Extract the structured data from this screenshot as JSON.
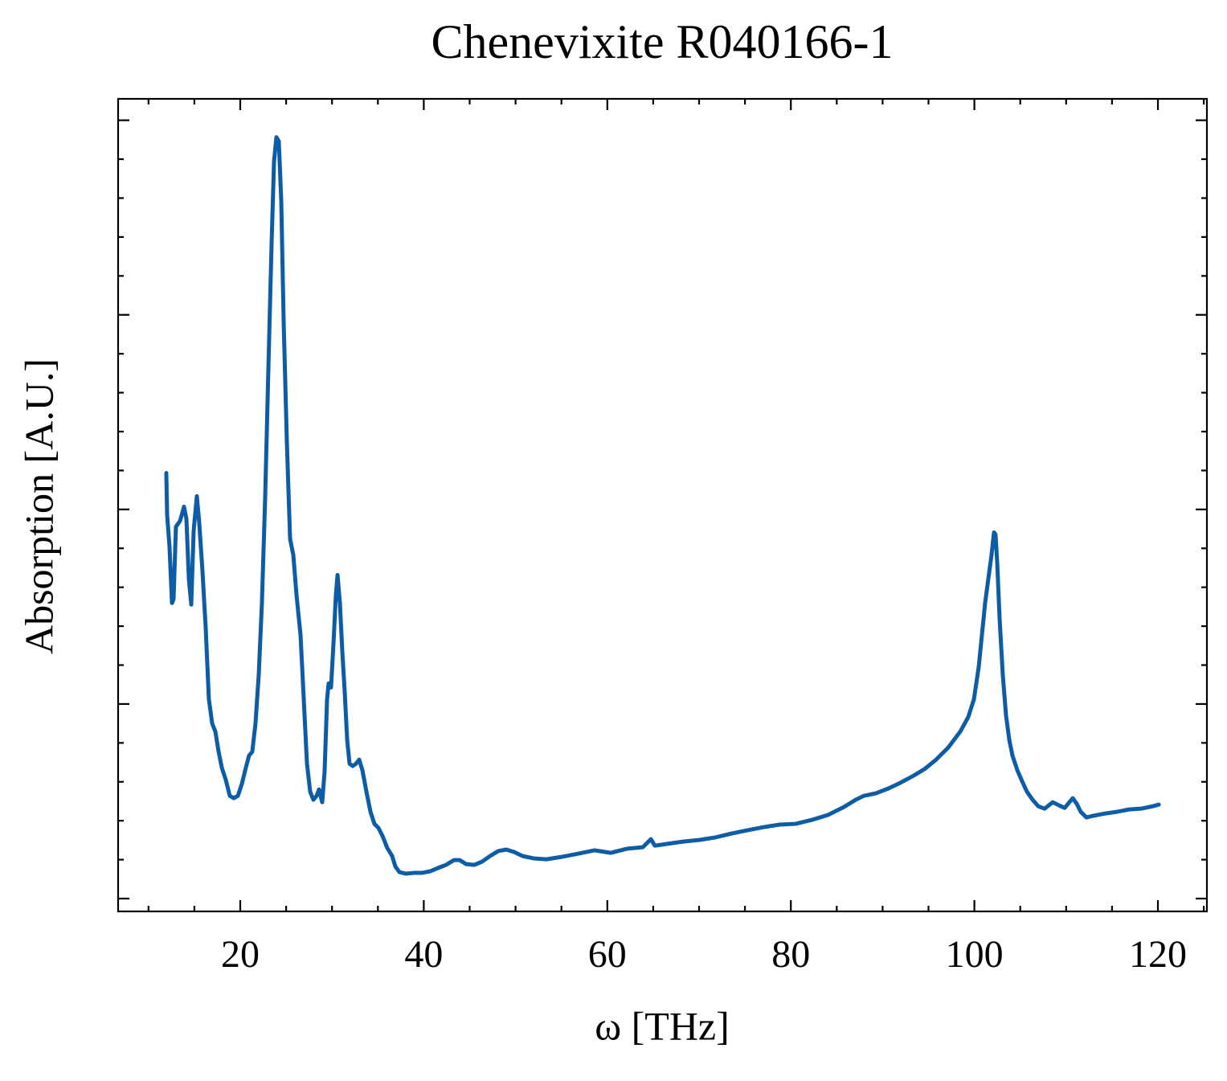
{
  "chart_data": {
    "type": "line",
    "title": "Chenevixite R040166-1",
    "x_label": "ω [THz]",
    "y_label": "Absorption [A.U.]",
    "xlim": [
      6.69,
      125.34
    ],
    "ylim": [
      -0.066,
      4.11
    ],
    "xticks": [
      20,
      40,
      60,
      80,
      100,
      120
    ],
    "xminorticks": [
      10,
      15,
      25,
      30,
      35,
      45,
      50,
      55,
      65,
      70,
      75,
      85,
      90,
      95,
      105,
      110,
      115,
      125
    ],
    "yticks": [
      0,
      1,
      2,
      3,
      4
    ],
    "yminorticks": [
      0.2,
      0.4,
      0.6,
      0.8,
      1.2,
      1.4,
      1.6,
      1.8,
      2.2,
      2.4,
      2.6,
      2.8,
      3.2,
      3.4,
      3.6,
      3.8
    ],
    "series": [
      {
        "color": "#0c5da5",
        "x": [
          11.94,
          12.03,
          12.29,
          12.56,
          12.73,
          12.99,
          13.43,
          13.87,
          14.13,
          14.4,
          14.66,
          14.92,
          15.27,
          15.53,
          15.88,
          16.23,
          16.58,
          16.94,
          17.29,
          17.64,
          17.99,
          18.42,
          18.86,
          19.3,
          19.74,
          20.18,
          20.61,
          20.96,
          21.31,
          21.66,
          22.01,
          22.36,
          22.71,
          23.06,
          23.42,
          23.68,
          23.94,
          24.2,
          24.47,
          24.73,
          25.08,
          25.43,
          25.78,
          26.13,
          26.57,
          26.92,
          27.27,
          27.62,
          27.97,
          28.32,
          28.58,
          28.93,
          29.19,
          29.46,
          29.63,
          29.89,
          30.16,
          30.42,
          30.6,
          30.86,
          31.12,
          31.38,
          31.65,
          31.91,
          32.26,
          32.61,
          32.96,
          33.31,
          33.75,
          34.19,
          34.62,
          35.06,
          35.5,
          36.02,
          36.55,
          36.9,
          37.34,
          38.04,
          38.91,
          39.79,
          40.67,
          41.54,
          42.42,
          43.29,
          43.91,
          44.61,
          45.48,
          46.36,
          47.23,
          48.11,
          48.98,
          49.86,
          50.74,
          52.05,
          53.36,
          55.11,
          56.87,
          58.62,
          60.37,
          62.12,
          63.87,
          64.75,
          65.18,
          66.5,
          68.25,
          70.0,
          71.75,
          73.5,
          75.25,
          77.01,
          78.76,
          80.51,
          82.26,
          84.01,
          85.76,
          87.08,
          87.95,
          89.26,
          90.58,
          91.89,
          93.2,
          94.52,
          95.83,
          97.15,
          98.46,
          99.33,
          99.95,
          100.47,
          100.82,
          101.17,
          101.52,
          101.87,
          102.14,
          102.31,
          102.49,
          102.75,
          103.1,
          103.45,
          103.8,
          104.15,
          104.68,
          105.2,
          105.73,
          106.34,
          106.95,
          107.65,
          108.53,
          109.23,
          109.84,
          110.72,
          111.16,
          111.59,
          112.21,
          112.91,
          114.22,
          115.53,
          116.85,
          118.16,
          119.47,
          120.09
        ],
        "values": [
          2.187,
          1.973,
          1.808,
          1.519,
          1.539,
          1.911,
          1.94,
          2.014,
          1.952,
          1.643,
          1.511,
          1.89,
          2.068,
          1.931,
          1.684,
          1.395,
          1.024,
          0.9,
          0.858,
          0.755,
          0.673,
          0.611,
          0.528,
          0.516,
          0.528,
          0.59,
          0.673,
          0.735,
          0.755,
          0.9,
          1.147,
          1.519,
          2.055,
          2.716,
          3.376,
          3.789,
          3.913,
          3.892,
          3.582,
          2.963,
          2.344,
          1.849,
          1.766,
          1.56,
          1.354,
          1.024,
          0.693,
          0.549,
          0.508,
          0.528,
          0.561,
          0.495,
          0.652,
          1.024,
          1.106,
          1.085,
          1.312,
          1.56,
          1.663,
          1.519,
          1.271,
          1.065,
          0.817,
          0.693,
          0.681,
          0.693,
          0.714,
          0.66,
          0.549,
          0.446,
          0.384,
          0.363,
          0.322,
          0.26,
          0.219,
          0.165,
          0.136,
          0.128,
          0.132,
          0.132,
          0.14,
          0.157,
          0.173,
          0.198,
          0.198,
          0.177,
          0.173,
          0.19,
          0.219,
          0.244,
          0.252,
          0.239,
          0.219,
          0.206,
          0.202,
          0.215,
          0.231,
          0.248,
          0.235,
          0.256,
          0.264,
          0.305,
          0.272,
          0.281,
          0.293,
          0.301,
          0.314,
          0.334,
          0.351,
          0.367,
          0.38,
          0.384,
          0.404,
          0.429,
          0.47,
          0.508,
          0.528,
          0.541,
          0.565,
          0.594,
          0.627,
          0.664,
          0.714,
          0.776,
          0.858,
          0.933,
          1.024,
          1.189,
          1.354,
          1.519,
          1.643,
          1.766,
          1.882,
          1.87,
          1.725,
          1.436,
          1.147,
          0.941,
          0.817,
          0.735,
          0.66,
          0.603,
          0.549,
          0.508,
          0.475,
          0.462,
          0.495,
          0.479,
          0.466,
          0.516,
          0.487,
          0.446,
          0.417,
          0.425,
          0.437,
          0.446,
          0.458,
          0.462,
          0.475,
          0.483
        ]
      }
    ]
  }
}
